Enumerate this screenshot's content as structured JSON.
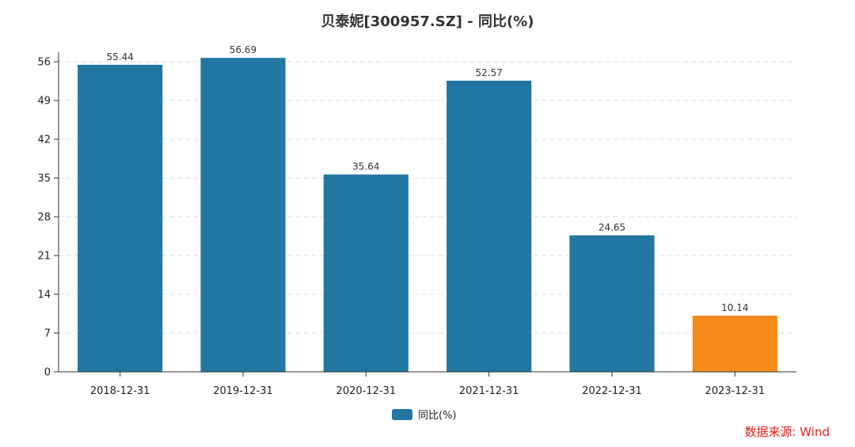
{
  "title": "贝泰妮[300957.SZ] - 同比(%)",
  "source": "数据来源: Wind",
  "chart_data": {
    "type": "bar",
    "title": "贝泰妮[300957.SZ] - 同比(%)",
    "xlabel": "",
    "ylabel": "",
    "categories": [
      "2018-12-31",
      "2019-12-31",
      "2020-12-31",
      "2021-12-31",
      "2022-12-31",
      "2023-12-31"
    ],
    "series": [
      {
        "name": "同比(%)",
        "values": [
          55.44,
          56.69,
          35.64,
          52.57,
          24.65,
          10.14
        ]
      }
    ],
    "data_labels": [
      "55.44",
      "56.69",
      "35.64",
      "52.57",
      "24.65",
      "10.14"
    ],
    "ylim": [
      0,
      56
    ],
    "yticks": [
      0,
      7,
      14,
      21,
      28,
      35,
      42,
      49,
      56
    ],
    "grid": "horizontal-dashed",
    "legend": "bottom-center",
    "colors": {
      "bar": "#2277a2",
      "highlight": "#f38a1a",
      "grid": "#dddddd",
      "axis": "#333333"
    },
    "highlight_index": 5
  }
}
